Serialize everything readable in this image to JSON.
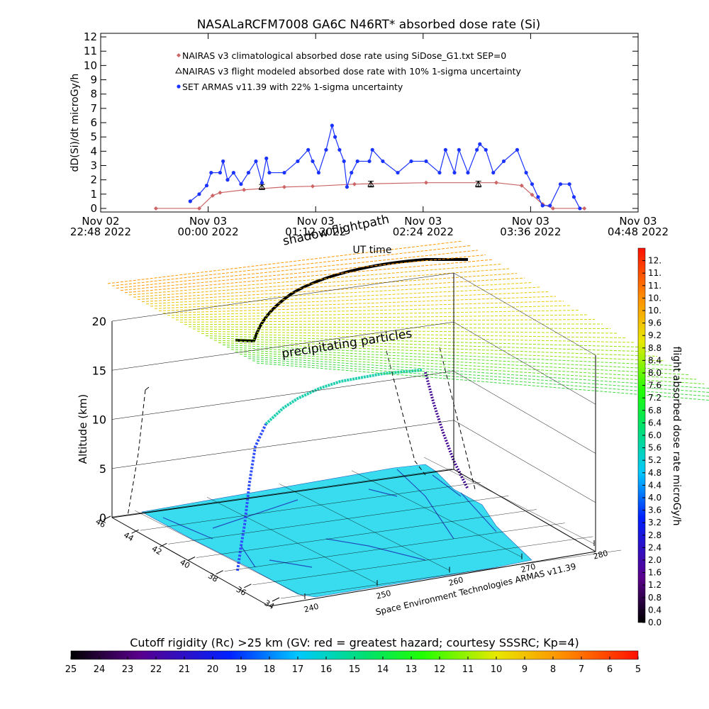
{
  "chart_data": [
    {
      "type": "line",
      "title": "NASALaRCFM7008  GA6C N46RT* absorbed dose rate (Si)",
      "y_label": "dD(Si)/dt microGy/h",
      "x_label": "UT time",
      "xlim": [
        "2022-11-02T22:48",
        "2022-11-03T04:48"
      ],
      "xticks": [
        {
          "value": "2022-11-02T22:48",
          "label": "Nov 02\n22:48 2022"
        },
        {
          "value": "2022-11-03T00:00",
          "label": "Nov 03\n00:00 2022"
        },
        {
          "value": "2022-11-03T01:12",
          "label": "Nov 03\n01:12 2022"
        },
        {
          "value": "2022-11-03T02:24",
          "label": "Nov 03\n02:24 2022"
        },
        {
          "value": "2022-11-03T03:36",
          "label": "Nov 03\n03:36 2022"
        },
        {
          "value": "2022-11-03T04:48",
          "label": "Nov 03\n04:48 2022"
        }
      ],
      "ylim": [
        -0.25,
        12.25
      ],
      "yticks": [
        0,
        1,
        2,
        3,
        4,
        5,
        6,
        7,
        8,
        9,
        10,
        11,
        12
      ],
      "series": [
        {
          "name": "NAIRAS v3 climatological absorbed dose rate using SiDose_G1.txt SEP=0",
          "color": "#cc6666",
          "marker": "diamond",
          "line": true,
          "x": [
            "2022-11-02T23:25",
            "2022-11-02T23:54",
            "2022-11-03T00:03",
            "2022-11-03T00:08",
            "2022-11-03T00:24",
            "2022-11-03T00:51",
            "2022-11-03T01:10",
            "2022-11-03T01:38",
            "2022-11-03T02:26",
            "2022-11-03T03:13",
            "2022-11-03T03:30",
            "2022-11-03T03:37",
            "2022-11-03T03:44",
            "2022-11-03T03:51",
            "2022-11-03T04:12"
          ],
          "values": [
            0,
            0,
            0.9,
            1.1,
            1.3,
            1.5,
            1.55,
            1.7,
            1.8,
            1.8,
            1.6,
            0.95,
            0.3,
            0,
            0
          ]
        },
        {
          "name": "NAIRAS v3 flight modeled absorbed dose rate with 10% 1-sigma uncertainty",
          "color": "#000000",
          "marker": "triangle",
          "line": false,
          "x": [
            "2022-11-03T00:36",
            "2022-11-03T01:49",
            "2022-11-03T03:01"
          ],
          "values": [
            1.5,
            1.7,
            1.7
          ],
          "errors": [
            0.18,
            0.2,
            0.2
          ]
        },
        {
          "name": "SET ARMAS v11.39 with 22% 1-sigma uncertainty",
          "color": "#1a33ff",
          "marker": "circle",
          "line": true,
          "x": [
            "2022-11-02T23:48",
            "2022-11-02T23:54",
            "2022-11-02T23:59",
            "2022-11-03T00:02",
            "2022-11-03T00:08",
            "2022-11-03T00:10",
            "2022-11-03T00:13",
            "2022-11-03T00:17",
            "2022-11-03T00:22",
            "2022-11-03T00:27",
            "2022-11-03T00:32",
            "2022-11-03T00:36",
            "2022-11-03T00:39",
            "2022-11-03T00:41",
            "2022-11-03T00:51",
            "2022-11-03T01:00",
            "2022-11-03T01:07",
            "2022-11-03T01:10",
            "2022-11-03T01:14",
            "2022-11-03T01:19",
            "2022-11-03T01:23",
            "2022-11-03T01:25",
            "2022-11-03T01:28",
            "2022-11-03T01:31",
            "2022-11-03T01:33",
            "2022-11-03T01:36",
            "2022-11-03T01:40",
            "2022-11-03T01:48",
            "2022-11-03T01:50",
            "2022-11-03T01:57",
            "2022-11-03T02:07",
            "2022-11-03T02:16",
            "2022-11-03T02:26",
            "2022-11-03T02:35",
            "2022-11-03T02:39",
            "2022-11-03T02:45",
            "2022-11-03T02:48",
            "2022-11-03T02:54",
            "2022-11-03T03:00",
            "2022-11-03T03:02",
            "2022-11-03T03:06",
            "2022-11-03T03:11",
            "2022-11-03T03:18",
            "2022-11-03T03:27",
            "2022-11-03T03:33",
            "2022-11-03T03:37",
            "2022-11-03T03:41",
            "2022-11-03T03:44",
            "2022-11-03T03:49",
            "2022-11-03T03:56",
            "2022-11-03T04:02",
            "2022-11-03T04:05",
            "2022-11-03T04:09"
          ],
          "values": [
            0.5,
            1.0,
            1.6,
            2.5,
            2.5,
            3.3,
            2.0,
            2.5,
            1.7,
            2.5,
            3.3,
            1.8,
            3.5,
            2.5,
            2.5,
            3.3,
            4.1,
            3.3,
            2.5,
            4.1,
            5.8,
            5.0,
            4.1,
            3.3,
            1.5,
            2.5,
            3.3,
            3.3,
            4.1,
            3.3,
            2.5,
            3.3,
            3.3,
            2.5,
            4.1,
            2.5,
            4.1,
            2.5,
            4.1,
            4.5,
            4.1,
            2.5,
            3.3,
            4.1,
            2.5,
            1.7,
            0.8,
            0.2,
            0.2,
            1.7,
            1.7,
            0.8,
            0
          ]
        }
      ]
    },
    {
      "type": "surface3d",
      "z_label": "Altitude (km)",
      "zlim": [
        0,
        20
      ],
      "zticks": [
        0,
        5,
        10,
        15,
        20
      ],
      "lat_lim": [
        46,
        34
      ],
      "lat_ticks": [
        46,
        44,
        42,
        40,
        38,
        36,
        34
      ],
      "lon_lim": [
        240,
        280
      ],
      "lon_ticks": [
        240,
        250,
        260,
        270,
        280
      ],
      "annotations": [
        "shadow flightpath",
        "precipitating particles",
        "Space Environment Technologies ARMAS v11.39"
      ],
      "dose_colorbar": {
        "label": "flight absorbed dose rate microGy/h",
        "lim": [
          0,
          12
        ],
        "ticks": [
          {
            "value": 0,
            "label": "0.0"
          },
          0.4,
          0.8,
          1.2,
          1.6,
          {
            "value": 2,
            "label": "2.0"
          },
          2.4,
          2.8,
          3.2,
          3.6,
          {
            "value": 4,
            "label": "4.0"
          },
          4.4,
          4.8,
          5.2,
          5.6,
          {
            "value": 6,
            "label": "6.0"
          },
          6.4,
          6.8,
          7.2,
          7.6,
          {
            "value": 8,
            "label": "8.0"
          },
          8.4,
          8.8,
          9.2,
          9.6,
          {
            "value": 10,
            "label": "10."
          },
          {
            "value": 10.4,
            "label": "10."
          },
          {
            "value": 10.8,
            "label": "11."
          },
          {
            "value": 11.2,
            "label": "11."
          },
          {
            "value": 11.6,
            "label": "12."
          }
        ]
      },
      "rigidity_colorbar": {
        "label": "Cutoff rigidity (Rc) >25 km (GV: red = greatest hazard; courtesy SSSRC; Kp=4)",
        "lim": [
          25,
          5
        ],
        "ticks": [
          25,
          24,
          23,
          22,
          21,
          20,
          19,
          18,
          17,
          16,
          15,
          14,
          13,
          12,
          11,
          10,
          9,
          8,
          7,
          6,
          5
        ]
      }
    }
  ]
}
